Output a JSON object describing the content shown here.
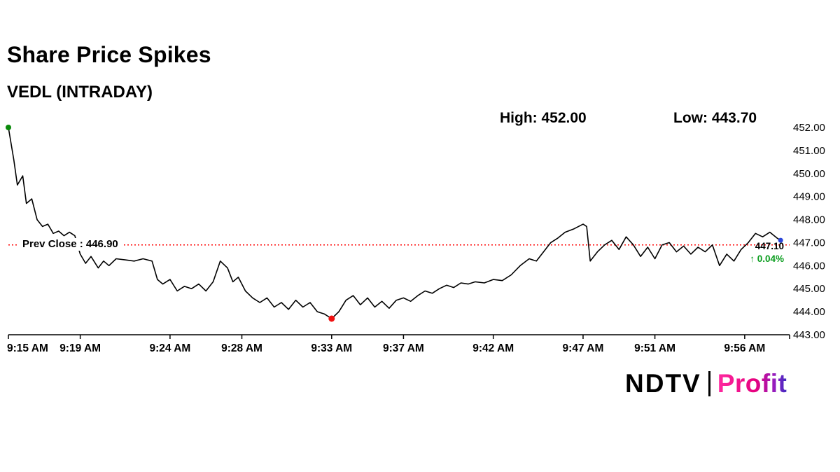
{
  "header": {
    "title": "Share Price Spikes",
    "subtitle": "VEDL (INTRADAY)",
    "high_label": "High: 452.00",
    "low_label": "Low: 443.70"
  },
  "chart_data": {
    "type": "line",
    "symbol": "VEDL",
    "title": "Share Price Spikes",
    "subtitle": "VEDL (INTRADAY)",
    "high": 452.0,
    "low": 443.7,
    "prev_close": 446.9,
    "prev_close_label": "Prev Close : 446.90",
    "last_price": 447.1,
    "last_price_label": "447.10",
    "change_pct_label": "↑ 0.04%",
    "line_color": "#000000",
    "prev_close_color": "#ff0000",
    "markers": {
      "start_color": "#0a8a0a",
      "low_color": "#f01010",
      "end_color": "#2b46d9"
    },
    "x_axis": {
      "tick_labels": [
        "9:15 AM",
        "9:19 AM",
        "9:24 AM",
        "9:28 AM",
        "9:33 AM",
        "9:37 AM",
        "9:42 AM",
        "9:47 AM",
        "9:51 AM",
        "9:56 AM"
      ],
      "tick_minutes": [
        0,
        4,
        9,
        13,
        18,
        22,
        27,
        32,
        36,
        41
      ],
      "minutes_range": [
        0,
        43.5
      ],
      "grid": false
    },
    "y_axis": {
      "ticks": [
        443,
        444,
        445,
        446,
        447,
        448,
        449,
        450,
        451,
        452
      ],
      "tick_labels": [
        "443.00",
        "444.00",
        "445.00",
        "446.00",
        "447.00",
        "448.00",
        "449.00",
        "450.00",
        "451.00",
        "452.00"
      ],
      "range": [
        443.0,
        452.0
      ],
      "grid": false
    },
    "series": [
      {
        "name": "VEDL price",
        "points": [
          [
            0,
            452.0
          ],
          [
            0.3,
            450.6
          ],
          [
            0.5,
            449.5
          ],
          [
            0.8,
            449.9
          ],
          [
            1.0,
            448.7
          ],
          [
            1.3,
            448.9
          ],
          [
            1.6,
            448.0
          ],
          [
            1.9,
            447.7
          ],
          [
            2.2,
            447.8
          ],
          [
            2.5,
            447.4
          ],
          [
            2.8,
            447.5
          ],
          [
            3.1,
            447.3
          ],
          [
            3.4,
            447.45
          ],
          [
            3.7,
            447.3
          ],
          [
            4.0,
            446.5
          ],
          [
            4.3,
            446.1
          ],
          [
            4.6,
            446.4
          ],
          [
            5.0,
            445.9
          ],
          [
            5.3,
            446.2
          ],
          [
            5.6,
            446.0
          ],
          [
            6.0,
            446.3
          ],
          [
            6.5,
            446.25
          ],
          [
            7.0,
            446.2
          ],
          [
            7.5,
            446.3
          ],
          [
            8.0,
            446.2
          ],
          [
            8.3,
            445.4
          ],
          [
            8.6,
            445.2
          ],
          [
            9.0,
            445.4
          ],
          [
            9.4,
            444.9
          ],
          [
            9.8,
            445.1
          ],
          [
            10.2,
            445.0
          ],
          [
            10.6,
            445.2
          ],
          [
            11.0,
            444.9
          ],
          [
            11.4,
            445.3
          ],
          [
            11.8,
            446.2
          ],
          [
            12.2,
            445.9
          ],
          [
            12.5,
            445.3
          ],
          [
            12.8,
            445.5
          ],
          [
            13.2,
            444.9
          ],
          [
            13.6,
            444.6
          ],
          [
            14.0,
            444.4
          ],
          [
            14.4,
            444.6
          ],
          [
            14.8,
            444.2
          ],
          [
            15.2,
            444.4
          ],
          [
            15.6,
            444.1
          ],
          [
            16.0,
            444.5
          ],
          [
            16.4,
            444.2
          ],
          [
            16.8,
            444.4
          ],
          [
            17.2,
            444.0
          ],
          [
            17.6,
            443.9
          ],
          [
            18.0,
            443.7
          ],
          [
            18.4,
            444.0
          ],
          [
            18.8,
            444.5
          ],
          [
            19.2,
            444.7
          ],
          [
            19.6,
            444.3
          ],
          [
            20.0,
            444.6
          ],
          [
            20.4,
            444.2
          ],
          [
            20.8,
            444.45
          ],
          [
            21.2,
            444.15
          ],
          [
            21.6,
            444.5
          ],
          [
            22.0,
            444.6
          ],
          [
            22.4,
            444.45
          ],
          [
            22.8,
            444.7
          ],
          [
            23.2,
            444.9
          ],
          [
            23.6,
            444.8
          ],
          [
            24.0,
            445.0
          ],
          [
            24.4,
            445.15
          ],
          [
            24.8,
            445.05
          ],
          [
            25.2,
            445.25
          ],
          [
            25.6,
            445.2
          ],
          [
            26.0,
            445.3
          ],
          [
            26.5,
            445.25
          ],
          [
            27.0,
            445.4
          ],
          [
            27.5,
            445.35
          ],
          [
            28.0,
            445.6
          ],
          [
            28.5,
            446.0
          ],
          [
            29.0,
            446.3
          ],
          [
            29.4,
            446.2
          ],
          [
            29.8,
            446.6
          ],
          [
            30.2,
            447.0
          ],
          [
            30.6,
            447.2
          ],
          [
            31.0,
            447.45
          ],
          [
            31.5,
            447.6
          ],
          [
            32.0,
            447.8
          ],
          [
            32.2,
            447.7
          ],
          [
            32.4,
            446.2
          ],
          [
            32.8,
            446.6
          ],
          [
            33.2,
            446.9
          ],
          [
            33.6,
            447.1
          ],
          [
            34.0,
            446.7
          ],
          [
            34.4,
            447.25
          ],
          [
            34.8,
            446.9
          ],
          [
            35.2,
            446.4
          ],
          [
            35.6,
            446.8
          ],
          [
            36.0,
            446.3
          ],
          [
            36.4,
            446.9
          ],
          [
            36.8,
            447.0
          ],
          [
            37.2,
            446.6
          ],
          [
            37.6,
            446.85
          ],
          [
            38.0,
            446.5
          ],
          [
            38.4,
            446.8
          ],
          [
            38.8,
            446.6
          ],
          [
            39.2,
            446.9
          ],
          [
            39.6,
            446.0
          ],
          [
            40.0,
            446.5
          ],
          [
            40.4,
            446.2
          ],
          [
            40.8,
            446.7
          ],
          [
            41.2,
            447.0
          ],
          [
            41.6,
            447.4
          ],
          [
            42.0,
            447.25
          ],
          [
            42.4,
            447.45
          ],
          [
            42.8,
            447.2
          ],
          [
            43.0,
            447.1
          ]
        ]
      }
    ]
  },
  "footer": {
    "brand_ndtv": "NDTV",
    "brand_profit": "Profit"
  }
}
